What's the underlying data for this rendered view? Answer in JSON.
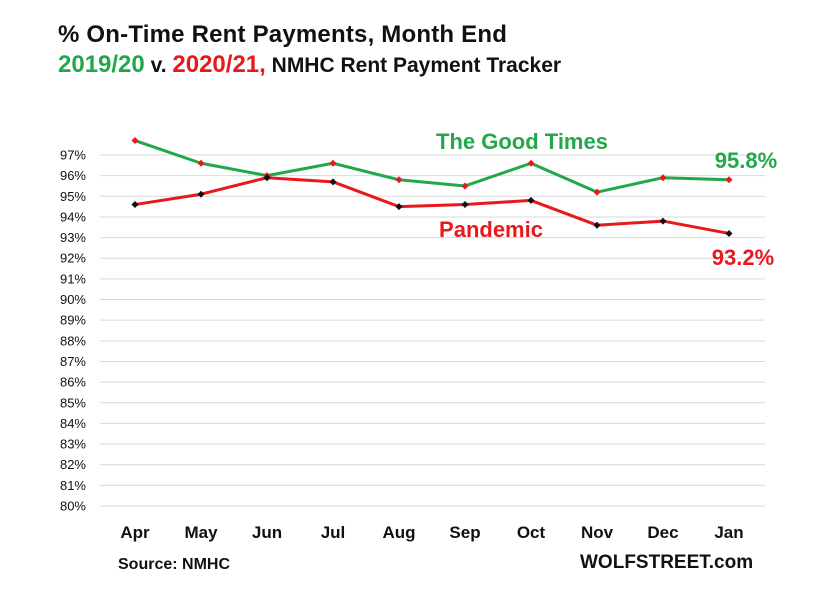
{
  "title": {
    "line1": "% On-Time  Rent Payments,  Month  End",
    "line2_green": "2019/20",
    "line2_mid": " v. ",
    "line2_red": "2020/21,",
    "line2_rest": " NMHC Rent Payment Tracker"
  },
  "source": "Source: NMHC",
  "credit": "WOLFSTREET.com",
  "colors": {
    "green": "#22a84a",
    "red": "#e8191c",
    "grid": "#d9d9d9",
    "marker_green": "#e8191c",
    "marker_red": "#111111"
  },
  "chart_data": {
    "type": "line",
    "categories": [
      "Apr",
      "May",
      "Jun",
      "Jul",
      "Aug",
      "Sep",
      "Oct",
      "Nov",
      "Dec",
      "Jan"
    ],
    "ylim": [
      80,
      97
    ],
    "yticks": [
      "80%",
      "81%",
      "82%",
      "83%",
      "84%",
      "85%",
      "86%",
      "87%",
      "88%",
      "89%",
      "90%",
      "91%",
      "92%",
      "93%",
      "94%",
      "95%",
      "96%",
      "97%"
    ],
    "grid": true,
    "legend": "none",
    "series": [
      {
        "name": "The Good Times",
        "color": "#22a84a",
        "values": [
          97.7,
          96.6,
          96.0,
          96.6,
          95.8,
          95.5,
          96.6,
          95.2,
          95.9,
          95.8
        ]
      },
      {
        "name": "Pandemic",
        "color": "#e8191c",
        "values": [
          94.6,
          95.1,
          95.9,
          95.7,
          94.5,
          94.6,
          94.8,
          93.6,
          93.8,
          93.2
        ]
      }
    ],
    "annotations": [
      {
        "text": "95.8%",
        "color": "#22a84a"
      },
      {
        "text": "93.2%",
        "color": "#e8191c"
      }
    ]
  }
}
